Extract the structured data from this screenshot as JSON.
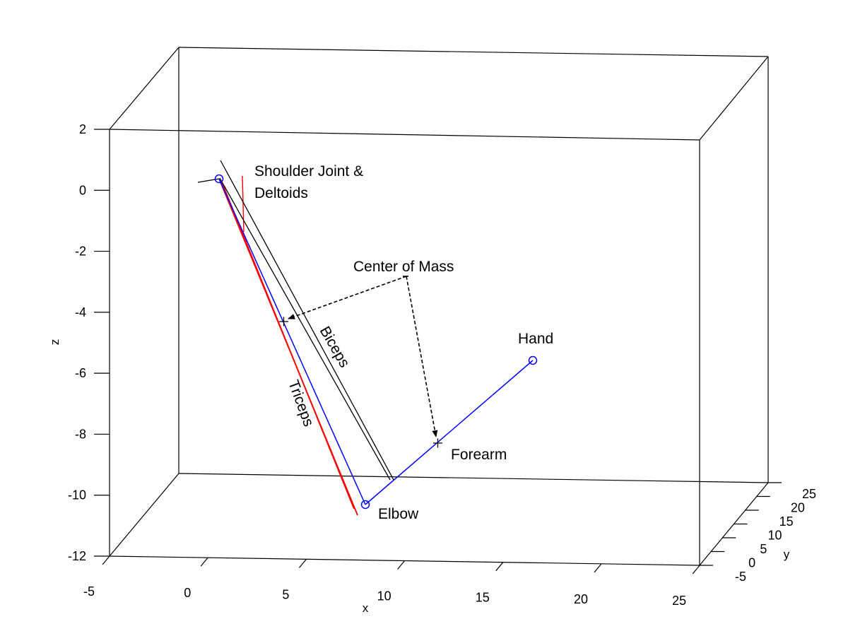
{
  "chart_data": {
    "type": "line3d",
    "xlabel": "x",
    "ylabel": "y",
    "zlabel": "z",
    "xlim": [
      -5,
      25
    ],
    "ylim": [
      -5,
      25
    ],
    "zlim": [
      -12,
      2
    ],
    "x_ticks": [
      "-5",
      "0",
      "5",
      "10",
      "15",
      "20",
      "25"
    ],
    "y_ticks": [
      "-5",
      "0",
      "5",
      "10",
      "15",
      "20",
      "25"
    ],
    "z_ticks": [
      "2",
      "0",
      "-2",
      "-4",
      "-6",
      "-8",
      "-10",
      "-12"
    ],
    "grid": false,
    "annotations": {
      "shoulder": "Shoulder Joint &",
      "shoulder2": "Deltoids",
      "center_of_mass": "Center of Mass",
      "biceps": "Biceps",
      "triceps": "Triceps",
      "hand": "Hand",
      "forearm": "Forearm",
      "elbow": "Elbow"
    },
    "colors": {
      "arm": "#0000ff",
      "triceps": "#ff0000",
      "biceps": "#000000"
    }
  }
}
